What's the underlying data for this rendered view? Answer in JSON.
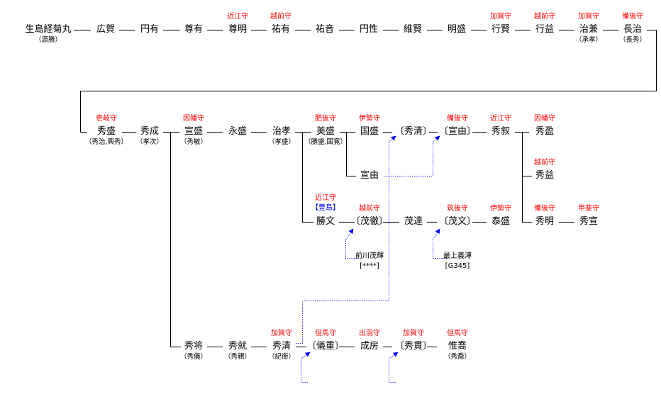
{
  "colors": {
    "title": "#ff0000",
    "clan": "#0000ff",
    "link": "#0000ff",
    "line": "#000000"
  },
  "nodes": [
    {
      "name": "生島経菊丸",
      "note": "（源勝）"
    },
    {
      "name": "広賀"
    },
    {
      "name": "円有"
    },
    {
      "name": "尊有"
    },
    {
      "name": "尊明",
      "title": "近江守"
    },
    {
      "name": "祐有",
      "title": "越前守"
    },
    {
      "name": "祐音"
    },
    {
      "name": "円性"
    },
    {
      "name": "維賢"
    },
    {
      "name": "明盛"
    },
    {
      "name": "行賢",
      "title": "加賀守"
    },
    {
      "name": "行益",
      "title": "越前守"
    },
    {
      "name": "治兼",
      "title": "加賀守",
      "note": "（承孝）"
    },
    {
      "name": "長治",
      "title": "備後守",
      "note": "（長秀）"
    },
    {
      "name": "秀盛",
      "title": "壱岐守",
      "note": "（秀治,興秀）"
    },
    {
      "name": "秀成",
      "note": "（孝次）"
    },
    {
      "name": "宣盛",
      "title": "因幡守",
      "note": "（秀敏）"
    },
    {
      "name": "永盛"
    },
    {
      "name": "治孝",
      "note": "（孝盛）"
    },
    {
      "name": "美盛",
      "title": "肥後守",
      "note": "（勝盛,国寛）"
    },
    {
      "name": "国盛",
      "title": "伊勢守"
    },
    {
      "name": "〔秀清〕"
    },
    {
      "name": "〔宣由〕",
      "title": "備後守"
    },
    {
      "name": "秀叙",
      "title": "近江守"
    },
    {
      "name": "秀盈",
      "title": "因幡守"
    },
    {
      "name": "宣由"
    },
    {
      "name": "秀益",
      "title": "越前守"
    },
    {
      "name": "勝文",
      "title": "近江守",
      "clan": "【豊島】"
    },
    {
      "name": "〔茂徹〕",
      "title": "越前守"
    },
    {
      "name": "茂達"
    },
    {
      "name": "〔茂文〕",
      "title": "筑後守"
    },
    {
      "name": "泰盛",
      "title": "伊勢守"
    },
    {
      "name": "秀明",
      "title": "備後守"
    },
    {
      "name": "秀宣",
      "title": "甲斐守"
    },
    {
      "name": "秀将",
      "note": "（秀儀）"
    },
    {
      "name": "秀就",
      "note": "（秀親）"
    },
    {
      "name": "秀清",
      "title": "加賀守",
      "note": "（紀衛）"
    },
    {
      "name": "〔儀重〕",
      "title": "但馬守"
    },
    {
      "name": "成房",
      "title": "出羽守"
    },
    {
      "name": "〔秀貫〕",
      "title": "加賀守"
    },
    {
      "name": "惟喬",
      "title": "但馬守",
      "note": "（秀喬）"
    }
  ],
  "refs": [
    {
      "name": "前川茂輝",
      "code": "[****]"
    },
    {
      "name": "最上義溥",
      "code": "[G345]"
    }
  ]
}
